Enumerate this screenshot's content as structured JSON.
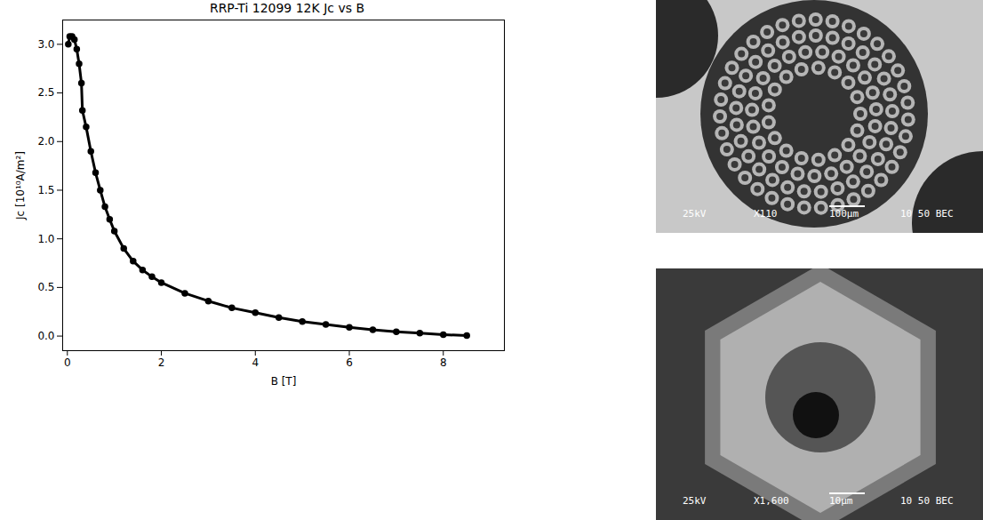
{
  "chart_data": {
    "type": "line",
    "title": "RRP-Ti 12099 12K Jc vs B",
    "x_label": "B [T]",
    "y_label": "Jc [10¹⁰A/m²]",
    "x": [
      0.02,
      0.05,
      0.1,
      0.15,
      0.2,
      0.25,
      0.3,
      0.32,
      0.4,
      0.5,
      0.6,
      0.7,
      0.8,
      0.9,
      1.0,
      1.2,
      1.4,
      1.6,
      1.8,
      2.0,
      2.5,
      3.0,
      3.5,
      4.0,
      4.5,
      5.0,
      5.5,
      6.0,
      6.5,
      7.0,
      7.5,
      8.0,
      8.5
    ],
    "values": [
      3.0,
      3.08,
      3.08,
      3.05,
      2.95,
      2.8,
      2.6,
      2.32,
      2.15,
      1.9,
      1.68,
      1.5,
      1.33,
      1.2,
      1.08,
      0.9,
      0.77,
      0.68,
      0.61,
      0.55,
      0.44,
      0.36,
      0.29,
      0.24,
      0.19,
      0.15,
      0.12,
      0.09,
      0.065,
      0.045,
      0.03,
      0.015,
      0.005
    ],
    "color": "#000000",
    "marker": "circle",
    "line_style": "solid",
    "xlim": [
      -0.1,
      9.3
    ],
    "xticks": [
      0,
      2,
      4,
      6,
      8
    ],
    "ylim": [
      -0.15,
      3.25
    ],
    "yticks": [
      {
        "value": 0,
        "label": "0.0"
      },
      0.5,
      {
        "value": 1,
        "label": "1.0"
      },
      1.5,
      {
        "value": 2,
        "label": "2.0"
      },
      2.5,
      {
        "value": 3,
        "label": "3.0"
      }
    ],
    "grid": false
  },
  "micrographs": [
    {
      "labels": [
        "25kV",
        "X110",
        "100µm",
        "10 50 BEC"
      ]
    },
    {
      "labels": [
        "25kV",
        "X1,600",
        "10µm",
        "10 50 BEC"
      ]
    }
  ]
}
